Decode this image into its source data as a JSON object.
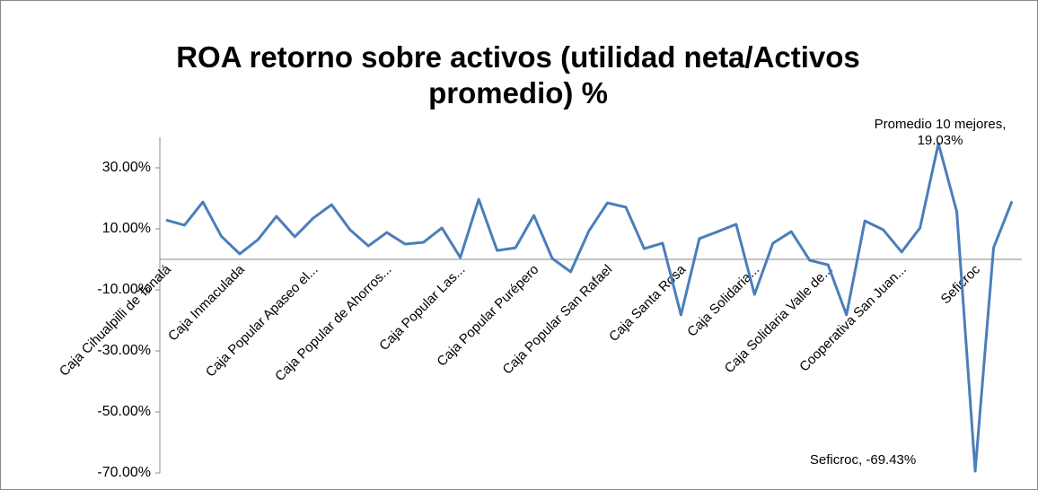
{
  "chart_data": {
    "type": "line",
    "title": "ROA retorno sobre activos (utilidad neta/Activos promedio) %",
    "categories": [
      "Caja Cihualpilli de Tonalá",
      null,
      null,
      null,
      "Caja Inmaculada",
      null,
      null,
      null,
      "Caja Popular Apaseo el...",
      null,
      null,
      null,
      "Caja Popular de Ahorros...",
      null,
      null,
      null,
      "Caja Popular Las...",
      null,
      null,
      null,
      "Caja Popular Purépero",
      null,
      null,
      null,
      "Caja Popular San Rafael",
      null,
      null,
      null,
      "Caja Santa Rosa",
      null,
      null,
      null,
      "Caja Solidaria...",
      null,
      null,
      null,
      "Caja Solidaria Valle de...",
      null,
      null,
      null,
      "Cooperativa San Juan...",
      null,
      null,
      null,
      "Seficroc",
      null,
      null
    ],
    "series": [
      {
        "name": "ROA",
        "color": "#4a7ebb",
        "values": [
          12.9,
          11.2,
          18.8,
          7.6,
          1.8,
          6.5,
          14.1,
          7.4,
          13.5,
          17.9,
          9.7,
          4.4,
          8.8,
          5.0,
          5.6,
          10.3,
          0.6,
          19.7,
          2.9,
          3.8,
          14.4,
          0.3,
          -4.1,
          9.4,
          18.5,
          17.1,
          3.5,
          5.3,
          -18.2,
          6.8,
          9.1,
          11.5,
          -11.5,
          5.3,
          9.1,
          -0.3,
          -1.8,
          -18.2,
          12.6,
          9.7,
          2.4,
          10.3,
          38.0,
          15.6,
          -69.43,
          3.8,
          19.03
        ],
        "value_labels": [
          null,
          null,
          null,
          null,
          null,
          null,
          null,
          null,
          null,
          null,
          null,
          null,
          null,
          null,
          null,
          null,
          null,
          null,
          null,
          null,
          null,
          null,
          null,
          null,
          null,
          null,
          null,
          null,
          null,
          null,
          null,
          null,
          null,
          null,
          null,
          null,
          null,
          null,
          null,
          null,
          null,
          null,
          null,
          null,
          "Seficroc, -69.43%",
          null,
          "Promedio 10 mejores, 19.03%"
        ]
      }
    ],
    "ylim": [
      -70,
      40
    ],
    "yticks": [
      {
        "value": -70,
        "label": "-70.00%"
      },
      {
        "value": -50,
        "label": "-50.00%"
      },
      {
        "value": -30,
        "label": "-30.00%"
      },
      {
        "value": -10,
        "label": "-10.00%"
      },
      {
        "value": 10,
        "label": "10.00%"
      },
      {
        "value": 30,
        "label": "30.00%"
      }
    ],
    "grid": false
  }
}
